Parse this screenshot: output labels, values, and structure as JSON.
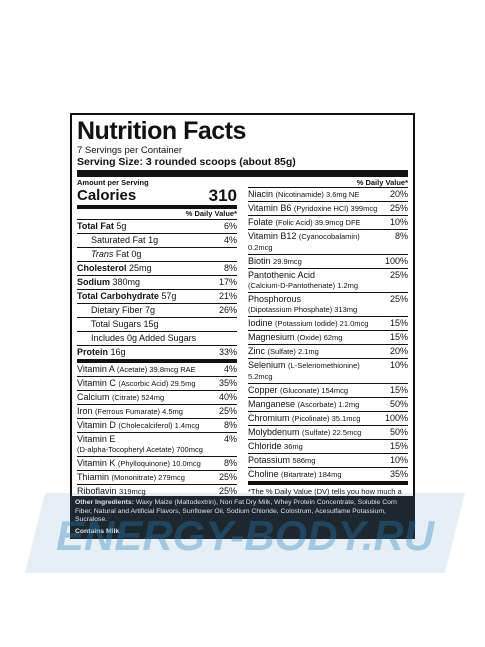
{
  "title": "Nutrition Facts",
  "servings": "7 Servings per Container",
  "serving_size": "Serving Size: 3 rounded scoops (about 85g)",
  "amount_per_serving": "Amount per Serving",
  "calories_label": "Calories",
  "calories_value": "310",
  "dv_header": "% Daily Value*",
  "left_rows": [
    {
      "name": "Total Fat",
      "amount": "5g",
      "pct": "6%"
    },
    {
      "name": "Saturated Fat",
      "amount": "1g",
      "pct": "4%"
    },
    {
      "name": "Trans",
      "amount": "Fat 0g",
      "pct": ""
    },
    {
      "name": "Cholesterol",
      "amount": "25mg",
      "pct": "8%"
    },
    {
      "name": "Sodium",
      "amount": "380mg",
      "pct": "17%"
    },
    {
      "name": "Total Carbohydrate",
      "amount": "57g",
      "pct": "21%"
    },
    {
      "name": "Dietary Fiber",
      "amount": "7g",
      "pct": "26%"
    },
    {
      "name": "Total Sugars",
      "amount": "15g",
      "pct": ""
    },
    {
      "name": "Includes",
      "amount": "0g Added Sugars",
      "pct": ""
    },
    {
      "name": "Protein",
      "amount": "16g",
      "pct": "33%"
    },
    {
      "name": "Vitamin A",
      "detail": "(Acetate) 39.8mcg RAE",
      "pct": "4%"
    },
    {
      "name": "Vitamin C",
      "detail": "(Ascorbic Acid) 29.5mg",
      "pct": "35%"
    },
    {
      "name": "Calcium",
      "detail": "(Citrate) 524mg",
      "pct": "40%"
    },
    {
      "name": "Iron",
      "detail": "(Ferrous Fumarate) 4.5mg",
      "pct": "25%"
    },
    {
      "name": "Vitamin D",
      "detail": "(Cholecalciferol) 1.4mcg",
      "pct": "8%"
    },
    {
      "name": "Vitamin E",
      "detail": "(D-alpha-Tocopheryl Acetate) 700mcg",
      "pct": "4%"
    },
    {
      "name": "Vitamin K",
      "detail": "(Phylloquinone) 10.0mcg",
      "pct": "8%"
    },
    {
      "name": "Thiamin",
      "detail": "(Mononitrate) 279mcg",
      "pct": "25%"
    },
    {
      "name": "Riboflavin",
      "detail": "319mcg",
      "pct": "25%"
    }
  ],
  "right_dv_header": "% Daily Value*",
  "right_rows": [
    {
      "name": "Niacin",
      "detail": "(Nicotinamide) 3.6mg NE",
      "pct": "20%"
    },
    {
      "name": "Vitamin B6",
      "detail": "(Pyridoxine HCl) 399mcg",
      "pct": "25%"
    },
    {
      "name": "Folate",
      "detail": "(Folic Acid) 39.9mcg DFE",
      "pct": "10%"
    },
    {
      "name": "Vitamin B12",
      "detail": "(Cyanocobalamin) 0.2mcg",
      "pct": "8%"
    },
    {
      "name": "Biotin",
      "detail": "29.9mcg",
      "pct": "100%"
    },
    {
      "name": "Pantothenic Acid",
      "detail": "(Calcium-D-Pantothenate) 1.2mg",
      "pct": "25%"
    },
    {
      "name": "Phosphorous",
      "detail": "(Dipotassium Phosphate) 313mg",
      "pct": "25%"
    },
    {
      "name": "Iodine",
      "detail": "(Potassium Iodide) 21.0mcg",
      "pct": "15%"
    },
    {
      "name": "Magnesium",
      "detail": "(Oxide) 62mg",
      "pct": "15%"
    },
    {
      "name": "Zinc",
      "detail": "(Sulfate) 2.1mg",
      "pct": "20%"
    },
    {
      "name": "Selenium",
      "detail": "(L-Selenomethionine) 5.2mcg",
      "pct": "10%"
    },
    {
      "name": "Copper",
      "detail": "(Gluconate) 154mcg",
      "pct": "15%"
    },
    {
      "name": "Manganese",
      "detail": "(Ascorbate) 1.2mg",
      "pct": "50%"
    },
    {
      "name": "Chromium",
      "detail": "(Picolinate) 35.1mcg",
      "pct": "100%"
    },
    {
      "name": "Molybdenum",
      "detail": "(Sulfate) 22.5mcg",
      "pct": "50%"
    },
    {
      "name": "Chloride",
      "detail": "36mg",
      "pct": "15%"
    },
    {
      "name": "Potassium",
      "detail": "586mg",
      "pct": "10%"
    },
    {
      "name": "Choline",
      "detail": "(Bitartrate) 184mg",
      "pct": "35%"
    }
  ],
  "footnote": "*The % Daily Value (DV) tells you how much a nutrient in a serving of food contributes to a daily diet. 2,000 calories a day is used for general nutrition advice.",
  "ingredients_label": "Other Ingredients:",
  "ingredients_text": "Waxy Maize (Maltodextrin), Non Fat Dry Milk, Whey Protein Concentrate, Soluble Corn Fiber, Natural and Artificial Flavors, Sunflower Oil, Sodium Chloride, Colostrum, Acesulfame Potassium, Sucralose.",
  "contains": "Contains Milk",
  "watermark_text": "ENERGY-BODY.RU",
  "colors": {
    "watermark": "#2a7fb8",
    "ink": "#111111",
    "ingredient_bg": "#1c1c1c"
  }
}
